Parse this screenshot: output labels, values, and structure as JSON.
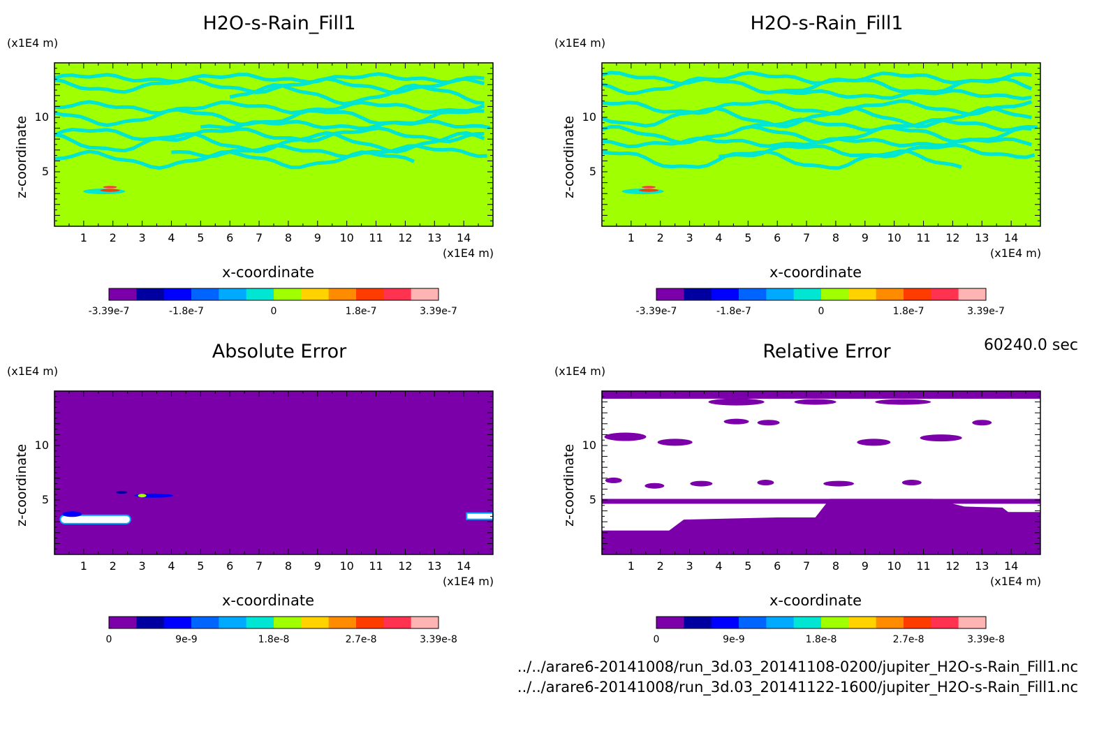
{
  "figure": {
    "time_label": "60240.0 sec",
    "file_paths": [
      "../../arare6-20141008/run_3d.03_20141108-0200/jupiter_H2O-s-Rain_Fill1.nc",
      "../../arare6-20141008/run_3d.03_20141122-1600/jupiter_H2O-s-Rain_Fill1.nc"
    ]
  },
  "palette": [
    "#7b00aa",
    "#0000a0",
    "#0000ff",
    "#0064ff",
    "#00aaff",
    "#00e6d2",
    "#a0ff00",
    "#ffd200",
    "#ff8c00",
    "#ff3c00",
    "#ff3250",
    "#ffb4b4"
  ],
  "chart_data": [
    {
      "type": "heatmap",
      "title": "H2O-s-Rain_Fill1",
      "xlabel": "x-coordinate",
      "ylabel": "z-coordinate",
      "x_unit": "(x1E4 m)",
      "y_unit": "(x1E4 m)",
      "xlim": [
        0,
        15
      ],
      "ylim": [
        0,
        15
      ],
      "x_ticks": [
        "1",
        "2",
        "3",
        "4",
        "5",
        "6",
        "7",
        "8",
        "9",
        "10",
        "11",
        "12",
        "13",
        "14"
      ],
      "y_ticks": [
        "5",
        "10"
      ],
      "colorbar_labels": [
        "-3.39e-7",
        "-1.8e-7",
        "0",
        "1.8e-7",
        "3.39e-7"
      ],
      "background": "#a0ff00",
      "pattern": "bands"
    },
    {
      "type": "heatmap",
      "title": "H2O-s-Rain_Fill1",
      "xlabel": "x-coordinate",
      "ylabel": "z-coordinate",
      "x_unit": "(x1E4 m)",
      "y_unit": "(x1E4 m)",
      "xlim": [
        0,
        15
      ],
      "ylim": [
        0,
        15
      ],
      "x_ticks": [
        "1",
        "2",
        "3",
        "4",
        "5",
        "6",
        "7",
        "8",
        "9",
        "10",
        "11",
        "12",
        "13",
        "14"
      ],
      "y_ticks": [
        "5",
        "10"
      ],
      "colorbar_labels": [
        "-3.39e-7",
        "-1.8e-7",
        "0",
        "1.8e-7",
        "3.39e-7"
      ],
      "background": "#a0ff00",
      "pattern": "bands"
    },
    {
      "type": "heatmap",
      "title": "Absolute Error",
      "xlabel": "x-coordinate",
      "ylabel": "z-coordinate",
      "x_unit": "(x1E4 m)",
      "y_unit": "(x1E4 m)",
      "xlim": [
        0,
        15
      ],
      "ylim": [
        0,
        15
      ],
      "x_ticks": [
        "1",
        "2",
        "3",
        "4",
        "5",
        "6",
        "7",
        "8",
        "9",
        "10",
        "11",
        "12",
        "13",
        "14"
      ],
      "y_ticks": [
        "5",
        "10"
      ],
      "colorbar_labels": [
        "0",
        "9e-9",
        "1.8e-8",
        "2.7e-8",
        "3.39e-8"
      ],
      "background": "#7b00aa",
      "pattern": "abs"
    },
    {
      "type": "heatmap",
      "title": "Relative Error",
      "xlabel": "x-coordinate",
      "ylabel": "z-coordinate",
      "x_unit": "(x1E4 m)",
      "y_unit": "(x1E4 m)",
      "xlim": [
        0,
        15
      ],
      "ylim": [
        0,
        15
      ],
      "x_ticks": [
        "1",
        "2",
        "3",
        "4",
        "5",
        "6",
        "7",
        "8",
        "9",
        "10",
        "11",
        "12",
        "13",
        "14"
      ],
      "y_ticks": [
        "5",
        "10"
      ],
      "colorbar_labels": [
        "0",
        "9e-9",
        "1.8e-8",
        "2.7e-8",
        "3.39e-8"
      ],
      "background": "#ffffff",
      "pattern": "rel"
    }
  ]
}
